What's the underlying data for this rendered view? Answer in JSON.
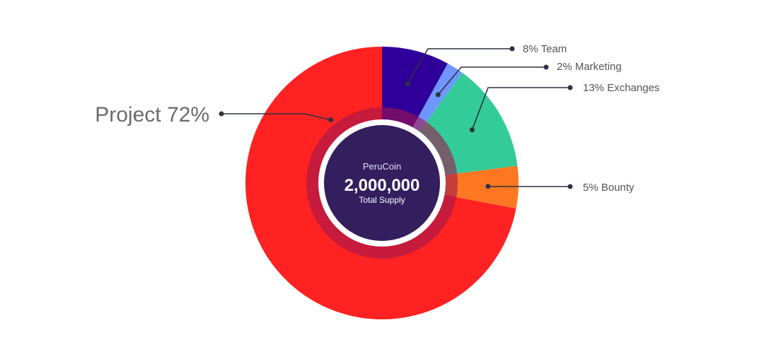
{
  "center": {
    "brand": "PeruCoin",
    "total": "2,000,000",
    "subtitle": "Total Supply"
  },
  "chart_data": {
    "type": "pie",
    "variant": "donut",
    "start_angle_deg": 0,
    "direction": "clockwise",
    "slices": [
      {
        "label": "8% Team",
        "value": 8,
        "color": "#2f0099"
      },
      {
        "label": "2% Marketing",
        "value": 2,
        "color": "#6f96ff"
      },
      {
        "label": "13% Exchanges",
        "value": 13,
        "color": "#33cc99"
      },
      {
        "label": "5% Bounty",
        "value": 5,
        "color": "#ff7722"
      },
      {
        "label": "Project 72%",
        "value": 72,
        "color": "#ff2222"
      }
    ],
    "center_circle_color": "#331f5e",
    "inner_ring_color": "#a0164e",
    "leader_color": "#2b3240"
  }
}
